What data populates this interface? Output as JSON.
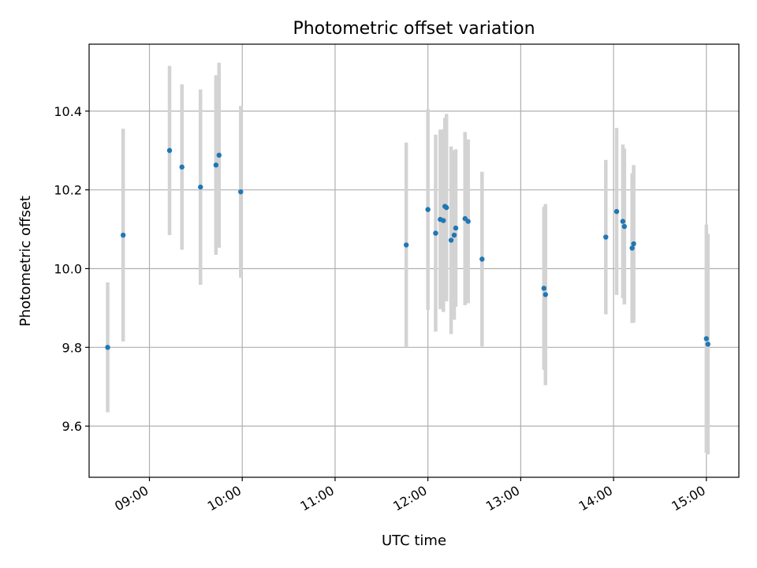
{
  "chart_data": {
    "type": "scatter",
    "title": "Photometric offset variation",
    "xlabel": "UTC time",
    "ylabel": "Photometric offset",
    "xlim": [
      "08:21",
      "15:21"
    ],
    "ylim": [
      9.47,
      10.57
    ],
    "x_ticks": [
      "09:00",
      "10:00",
      "11:00",
      "12:00",
      "13:00",
      "14:00",
      "15:00"
    ],
    "y_ticks": [
      9.6,
      9.8,
      10.0,
      10.2,
      10.4
    ],
    "grid": true,
    "colors": {
      "point": "#1f77b4",
      "error_bar": "#d3d3d3"
    },
    "series": [
      {
        "points": [
          {
            "x": "08:33",
            "y": 9.8,
            "err": 0.165
          },
          {
            "x": "08:43",
            "y": 10.085,
            "err": 0.27
          },
          {
            "x": "09:13",
            "y": 10.3,
            "err": 0.215
          },
          {
            "x": "09:21",
            "y": 10.258,
            "err": 0.21
          },
          {
            "x": "09:33",
            "y": 10.207,
            "err": 0.248
          },
          {
            "x": "09:43",
            "y": 10.263,
            "err": 0.228
          },
          {
            "x": "09:45",
            "y": 10.288,
            "err": 0.235
          },
          {
            "x": "09:59",
            "y": 10.195,
            "err": 0.218
          },
          {
            "x": "11:46",
            "y": 10.06,
            "err": 0.26
          },
          {
            "x": "12:00",
            "y": 10.15,
            "err": 0.255
          },
          {
            "x": "12:05",
            "y": 10.09,
            "err": 0.25
          },
          {
            "x": "12:08",
            "y": 10.125,
            "err": 0.228
          },
          {
            "x": "12:10",
            "y": 10.122,
            "err": 0.232
          },
          {
            "x": "12:11",
            "y": 10.158,
            "err": 0.225
          },
          {
            "x": "12:12",
            "y": 10.155,
            "err": 0.238
          },
          {
            "x": "12:15",
            "y": 10.072,
            "err": 0.238
          },
          {
            "x": "12:17",
            "y": 10.085,
            "err": 0.215
          },
          {
            "x": "12:18",
            "y": 10.103,
            "err": 0.2
          },
          {
            "x": "12:24",
            "y": 10.127,
            "err": 0.22
          },
          {
            "x": "12:26",
            "y": 10.12,
            "err": 0.208
          },
          {
            "x": "12:35",
            "y": 10.024,
            "err": 0.222
          },
          {
            "x": "13:15",
            "y": 9.95,
            "err": 0.207
          },
          {
            "x": "13:16",
            "y": 9.934,
            "err": 0.23
          },
          {
            "x": "13:55",
            "y": 10.08,
            "err": 0.196
          },
          {
            "x": "14:02",
            "y": 10.145,
            "err": 0.212
          },
          {
            "x": "14:06",
            "y": 10.12,
            "err": 0.195
          },
          {
            "x": "14:07",
            "y": 10.107,
            "err": 0.198
          },
          {
            "x": "14:12",
            "y": 10.052,
            "err": 0.19
          },
          {
            "x": "14:13",
            "y": 10.063,
            "err": 0.2
          },
          {
            "x": "15:00",
            "y": 9.822,
            "err": 0.29
          },
          {
            "x": "15:01",
            "y": 9.808,
            "err": 0.28
          }
        ]
      }
    ]
  }
}
